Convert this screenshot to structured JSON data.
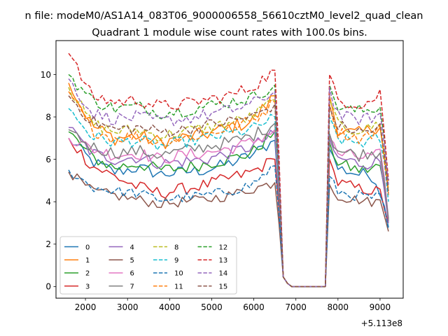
{
  "figure": {
    "suptitle": "n file: modeM0/AS1A14_083T06_9000006558_56610cztM0_level2_quad_clean",
    "axis_offset_label": "+5.113e8"
  },
  "chart_data": {
    "type": "line",
    "title": "Quadrant 1 module wise count rates with 100.0s bins.",
    "xlabel": "",
    "ylabel": "",
    "x_offset": 511300000,
    "xlim": [
      1300,
      9550
    ],
    "ylim": [
      -0.55,
      11.6
    ],
    "xticks": [
      2000,
      3000,
      4000,
      5000,
      6000,
      7000,
      8000,
      9000
    ],
    "yticks": [
      0,
      2,
      4,
      6,
      8,
      10
    ],
    "x_start": 1600,
    "x_step": 100,
    "gap_segment_x": [
      6600,
      6700,
      6800,
      6900,
      7000,
      7100,
      7200,
      7300,
      7400,
      7500,
      7600,
      7700
    ],
    "legend": {
      "location": "lower-left",
      "columns": 4
    },
    "series": [
      {
        "name": "0",
        "color": "#1f77b4",
        "dash": "solid",
        "levels": [
          7.0,
          5.9,
          5.4,
          5.6,
          5.3,
          5.4,
          5.5,
          5.8,
          6.2,
          6.9
        ],
        "late": [
          6.5,
          5.6,
          5.5,
          5.4,
          5.3,
          5.3,
          5.2,
          4.4,
          2.8
        ],
        "amp": 0.3
      },
      {
        "name": "1",
        "color": "#ff7f0e",
        "dash": "solid",
        "levels": [
          9.6,
          7.6,
          7.0,
          7.1,
          6.8,
          7.0,
          7.2,
          7.5,
          7.8,
          9.0
        ],
        "late": [
          9.0,
          7.5,
          7.3,
          7.2,
          7.2,
          7.3,
          7.5,
          7.7,
          4.3
        ],
        "amp": 0.35
      },
      {
        "name": "2",
        "color": "#2ca02c",
        "dash": "solid",
        "levels": [
          7.3,
          6.1,
          5.6,
          5.8,
          5.5,
          5.6,
          5.8,
          6.0,
          6.3,
          7.3
        ],
        "late": [
          6.8,
          5.9,
          5.7,
          5.6,
          5.5,
          5.5,
          5.6,
          5.7,
          3.1
        ],
        "amp": 0.3
      },
      {
        "name": "3",
        "color": "#d62728",
        "dash": "solid",
        "levels": [
          7.0,
          5.7,
          5.2,
          4.7,
          4.4,
          4.6,
          4.8,
          5.1,
          5.4,
          6.0
        ],
        "late": [
          6.0,
          4.9,
          4.8,
          4.7,
          4.6,
          4.6,
          4.5,
          4.4,
          3.0
        ],
        "amp": 0.3
      },
      {
        "name": "4",
        "color": "#9467bd",
        "dash": "solid",
        "levels": [
          7.5,
          6.3,
          6.0,
          6.1,
          5.8,
          5.9,
          6.0,
          6.3,
          6.6,
          7.2
        ],
        "late": [
          7.0,
          6.0,
          6.0,
          5.9,
          5.8,
          5.8,
          5.9,
          5.9,
          3.0
        ],
        "amp": 0.3
      },
      {
        "name": "5",
        "color": "#8c564b",
        "dash": "solid",
        "levels": [
          5.4,
          4.5,
          4.3,
          4.1,
          3.9,
          4.0,
          4.1,
          4.3,
          4.6,
          4.9
        ],
        "late": [
          4.8,
          4.3,
          4.2,
          4.1,
          4.1,
          4.0,
          4.0,
          4.0,
          2.6
        ],
        "amp": 0.25
      },
      {
        "name": "6",
        "color": "#e377c2",
        "dash": "solid",
        "levels": [
          7.0,
          6.5,
          6.2,
          6.3,
          6.0,
          6.2,
          6.3,
          6.5,
          6.8,
          7.4
        ],
        "late": [
          7.0,
          6.3,
          6.2,
          6.2,
          6.1,
          6.1,
          6.2,
          6.2,
          3.2
        ],
        "amp": 0.3
      },
      {
        "name": "7",
        "color": "#7f7f7f",
        "dash": "solid",
        "levels": [
          7.4,
          6.6,
          6.3,
          6.4,
          6.2,
          6.4,
          6.6,
          6.8,
          7.1,
          7.7
        ],
        "late": [
          7.2,
          6.5,
          6.3,
          6.3,
          6.2,
          6.3,
          6.3,
          6.4,
          3.2
        ],
        "amp": 0.3
      },
      {
        "name": "8",
        "color": "#bcbd22",
        "dash": "dashed",
        "levels": [
          9.4,
          7.7,
          7.3,
          7.4,
          7.1,
          7.3,
          7.5,
          7.7,
          8.0,
          8.8
        ],
        "late": [
          8.8,
          7.6,
          7.5,
          7.4,
          7.4,
          7.4,
          7.6,
          7.7,
          4.6
        ],
        "amp": 0.3
      },
      {
        "name": "9",
        "color": "#17becf",
        "dash": "dashed",
        "levels": [
          8.4,
          7.1,
          6.8,
          6.9,
          6.6,
          6.8,
          7.0,
          7.2,
          7.4,
          8.0
        ],
        "late": [
          8.0,
          7.0,
          6.9,
          6.8,
          6.8,
          6.8,
          6.9,
          7.0,
          4.0
        ],
        "amp": 0.3
      },
      {
        "name": "10",
        "color": "#1f77b4",
        "dash": "dashed",
        "levels": [
          5.5,
          4.7,
          4.5,
          4.4,
          4.1,
          4.2,
          4.3,
          4.5,
          4.8,
          5.7
        ],
        "late": [
          5.2,
          4.5,
          4.4,
          4.3,
          4.3,
          4.2,
          4.2,
          4.2,
          2.7
        ],
        "amp": 0.25
      },
      {
        "name": "11",
        "color": "#ff7f0e",
        "dash": "dashed",
        "levels": [
          9.2,
          7.4,
          7.0,
          7.1,
          6.8,
          7.0,
          7.2,
          7.5,
          7.8,
          8.7
        ],
        "late": [
          8.6,
          7.3,
          7.2,
          7.1,
          7.0,
          7.1,
          7.2,
          7.4,
          4.5
        ],
        "amp": 0.3
      },
      {
        "name": "12",
        "color": "#2ca02c",
        "dash": "dashed",
        "levels": [
          10.0,
          8.8,
          8.4,
          8.5,
          8.2,
          8.3,
          8.5,
          8.7,
          8.9,
          9.5
        ],
        "late": [
          9.5,
          8.5,
          8.4,
          8.3,
          8.3,
          8.3,
          8.4,
          8.5,
          5.0
        ],
        "amp": 0.3
      },
      {
        "name": "13",
        "color": "#d62728",
        "dash": "dashed",
        "levels": [
          11.0,
          9.0,
          8.7,
          8.8,
          8.5,
          8.6,
          8.8,
          9.0,
          9.4,
          10.2
        ],
        "late": [
          10.0,
          8.8,
          8.7,
          8.7,
          8.6,
          8.7,
          8.8,
          9.2,
          5.0
        ],
        "amp": 0.3
      },
      {
        "name": "14",
        "color": "#9467bd",
        "dash": "dashed",
        "levels": [
          9.8,
          8.2,
          7.9,
          8.0,
          7.8,
          7.9,
          8.1,
          8.3,
          8.6,
          9.2
        ],
        "late": [
          9.4,
          8.2,
          8.0,
          7.9,
          7.9,
          7.9,
          8.0,
          8.1,
          4.8
        ],
        "amp": 0.3
      },
      {
        "name": "15",
        "color": "#8c564b",
        "dash": "dashed",
        "levels": [
          9.0,
          7.8,
          7.4,
          7.5,
          7.3,
          7.4,
          7.6,
          7.8,
          8.0,
          8.6
        ],
        "late": [
          8.5,
          7.6,
          7.5,
          7.4,
          7.3,
          7.3,
          7.4,
          7.5,
          4.4
        ],
        "amp": 0.3
      }
    ]
  }
}
